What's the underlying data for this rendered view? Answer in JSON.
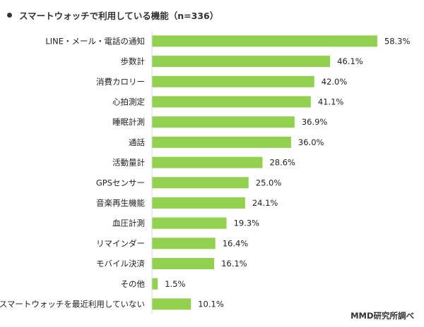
{
  "title": "スマートウォッチで利用している機能（n=336）",
  "source": "MMD研究所調べ",
  "colors": {
    "bar": "#92d050",
    "axis": "#d9d9d9"
  },
  "chart_data": {
    "type": "bar",
    "orientation": "horizontal",
    "title": "スマートウォッチで利用している機能（n=336）",
    "categories": [
      "LINE・メール・電話の通知",
      "歩数計",
      "消費カロリー",
      "心拍測定",
      "睡眠計測",
      "通話",
      "活動量計",
      "GPSセンサー",
      "音楽再生機能",
      "血圧計測",
      "リマインダー",
      "モバイル決済",
      "その他",
      "スマートウォッチを最近利用していない"
    ],
    "values": [
      58.3,
      46.1,
      42.0,
      41.1,
      36.9,
      36.0,
      28.6,
      25.0,
      24.1,
      19.3,
      16.4,
      16.1,
      1.5,
      10.1
    ],
    "value_labels": [
      "58.3%",
      "46.1%",
      "42.0%",
      "41.1%",
      "36.9%",
      "36.0%",
      "28.6%",
      "25.0%",
      "24.1%",
      "19.3%",
      "16.4%",
      "16.1%",
      "1.5%",
      "10.1%"
    ],
    "unit": "%",
    "xlim": [
      0,
      60
    ],
    "grid": false,
    "legend": "none",
    "annotation": "MMD研究所調べ"
  }
}
